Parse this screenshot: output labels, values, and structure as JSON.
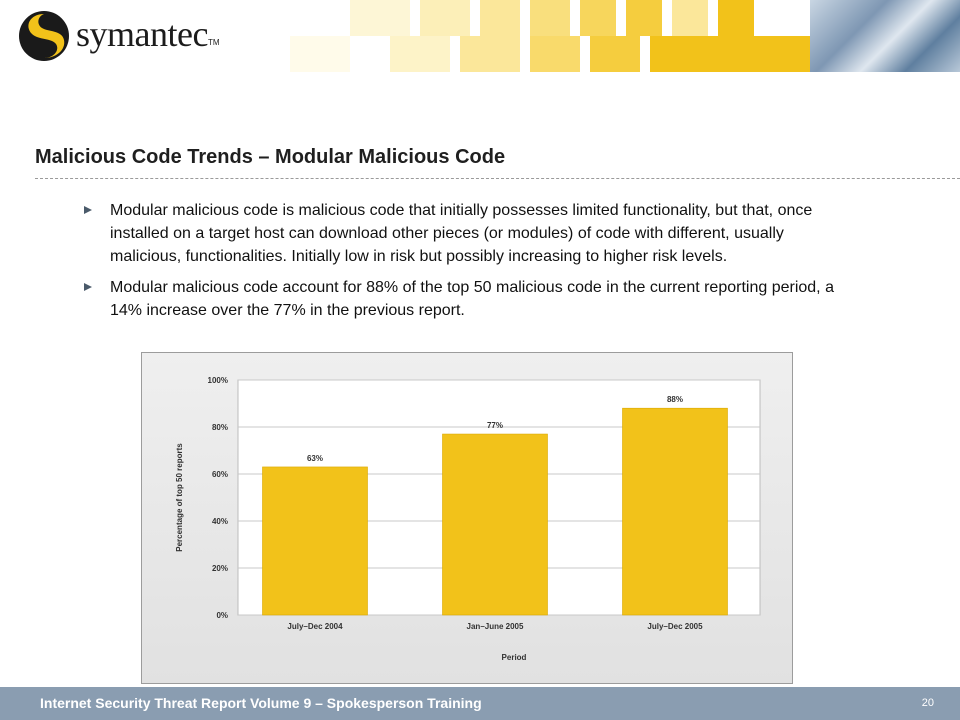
{
  "header": {
    "logo_text": "symantec",
    "logo_tm": "TM",
    "logo_icon": "swirl-logo-icon",
    "colors": {
      "accent": "#f2c21a",
      "banner_light": "#fbeaa0",
      "footer": "#8a9db1"
    }
  },
  "slide": {
    "title": "Malicious Code Trends – Modular Malicious Code",
    "bullets": [
      "Modular malicious code is malicious code that initially possesses limited functionality, but that, once installed on a target host can download other pieces (or modules) of code with different, usually malicious, functionalities.  Initially low in risk but possibly increasing to higher risk levels.",
      "Modular malicious code account for 88% of the top 50 malicious code in the current reporting period, a 14% increase over the 77% in the previous report."
    ]
  },
  "chart_data": {
    "type": "bar",
    "categories": [
      "July–Dec 2004",
      "Jan–June 2005",
      "July–Dec 2005"
    ],
    "values": [
      63,
      77,
      88
    ],
    "data_labels": [
      "63%",
      "77%",
      "88%"
    ],
    "title": "",
    "xlabel": "Period",
    "ylabel": "Percentage of top 50 reports",
    "ylim": [
      0,
      100
    ],
    "yticks": [
      0,
      20,
      40,
      60,
      80,
      100
    ],
    "ytick_labels": [
      "0%",
      "20%",
      "40%",
      "60%",
      "80%",
      "100%"
    ],
    "grid": true,
    "bar_color": "#f2c21a"
  },
  "footer": {
    "text": "Internet Security Threat Report Volume 9 – Spokesperson Training",
    "page_number": "20"
  }
}
